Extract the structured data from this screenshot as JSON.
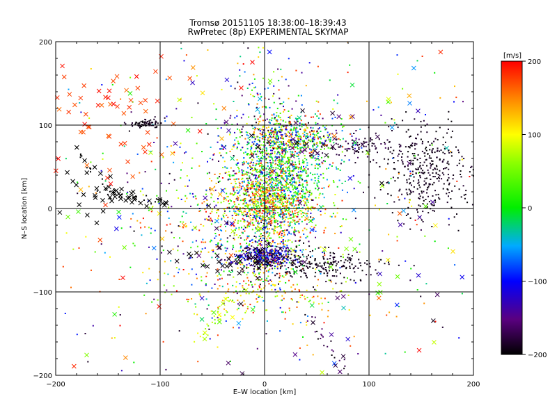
{
  "chart_data": {
    "type": "scatter",
    "title": "Tromsø 20151105  18:38:00–18:39:43",
    "subtitle": "RwPretec (8p) EXPERIMENTAL SKYMAP",
    "xlabel": "E–W location [km]",
    "ylabel": "N–S location [km]",
    "xlim": [
      -200,
      200
    ],
    "ylim": [
      -200,
      200
    ],
    "xticks": [
      "−200",
      "−100",
      "0",
      "100",
      "200"
    ],
    "yticks": [
      "−200",
      "−100",
      "0",
      "100",
      "200"
    ],
    "grid": true,
    "colorbar": {
      "label": "[m/s]",
      "range": [
        -200,
        200
      ],
      "ticks": [
        "200",
        "100",
        "0",
        "−100",
        "−200"
      ],
      "colormap": "rainbow (black → purple → blue → cyan → green → yellow → red)"
    },
    "clusters": [
      {
        "cx": 5,
        "cy": 20,
        "sx": 22,
        "sy": 55,
        "n": 1400,
        "vmin": -200,
        "vmax": 200,
        "note": "central vertical band"
      },
      {
        "cx": 0,
        "cy": 5,
        "sx": 25,
        "sy": 12,
        "n": 350,
        "vmin": 40,
        "vmax": 200
      },
      {
        "cx": 20,
        "cy": 40,
        "sx": 22,
        "sy": 30,
        "n": 500,
        "vmin": -60,
        "vmax": 60
      },
      {
        "cx": 30,
        "cy": 85,
        "sx": 25,
        "sy": 10,
        "n": 350,
        "vmin": -200,
        "vmax": 200
      },
      {
        "cx": 0,
        "cy": -57,
        "sx": 14,
        "sy": 6,
        "n": 350,
        "vmin": -200,
        "vmax": -70
      },
      {
        "cx": 55,
        "cy": -68,
        "sx": 28,
        "sy": 9,
        "n": 220,
        "vmin": -200,
        "vmax": -180
      },
      {
        "cx": 155,
        "cy": 45,
        "sx": 22,
        "sy": 28,
        "n": 380,
        "vmin": -200,
        "vmax": -180
      },
      {
        "cx": -115,
        "cy": 102,
        "sx": 8,
        "sy": 3,
        "n": 70,
        "vmin": -200,
        "vmax": -180
      },
      {
        "cx": 85,
        "cy": 75,
        "sx": 18,
        "sy": 7,
        "n": 90,
        "vmin": -200,
        "vmax": -160
      },
      {
        "cx": -40,
        "cy": -20,
        "sx": 40,
        "sy": 50,
        "n": 350,
        "vmin": -200,
        "vmax": 200
      },
      {
        "cx": 10,
        "cy": 0,
        "sx": 120,
        "sy": 110,
        "n": 500,
        "vmin": -200,
        "vmax": 200,
        "note": "sparse background"
      },
      {
        "cx": 0,
        "cy": -100,
        "sx": 40,
        "sy": 15,
        "n": 120,
        "vmin": 50,
        "vmax": 200
      }
    ],
    "tracks": [
      {
        "x0": -183,
        "y0": 70,
        "x1": -155,
        "y1": 30,
        "n": 15,
        "vmin": -200,
        "vmax": -200,
        "note": "upper-left black streak"
      },
      {
        "x0": -160,
        "y0": 22,
        "x1": -95,
        "y1": 5,
        "n": 45,
        "vmin": -200,
        "vmax": -200,
        "note": "left black track"
      },
      {
        "x0": -20,
        "y0": -95,
        "x1": -65,
        "y1": -160,
        "n": 35,
        "vmin": 40,
        "vmax": 110,
        "note": "lower-left green/yellow streak"
      },
      {
        "x0": 40,
        "y0": -125,
        "x1": 80,
        "y1": -195,
        "n": 25,
        "vmin": -200,
        "vmax": -150,
        "note": "lower-right streak"
      }
    ],
    "x_markers": [
      {
        "cx": -150,
        "cy": 120,
        "sx": 40,
        "sy": 40,
        "n": 65,
        "vmin": 160,
        "vmax": 200
      },
      {
        "cx": -170,
        "cy": 15,
        "sx": 20,
        "sy": 15,
        "n": 25,
        "vmin": -200,
        "vmax": -200
      },
      {
        "cx": -30,
        "cy": -62,
        "sx": 30,
        "sy": 8,
        "n": 40,
        "vmin": -200,
        "vmax": -190
      },
      {
        "cx": 40,
        "cy": 80,
        "sx": 40,
        "sy": 15,
        "n": 30,
        "vmin": -200,
        "vmax": -150
      },
      {
        "cx": 0,
        "cy": 0,
        "sx": 130,
        "sy": 110,
        "n": 170,
        "vmin": -200,
        "vmax": 200
      }
    ]
  }
}
